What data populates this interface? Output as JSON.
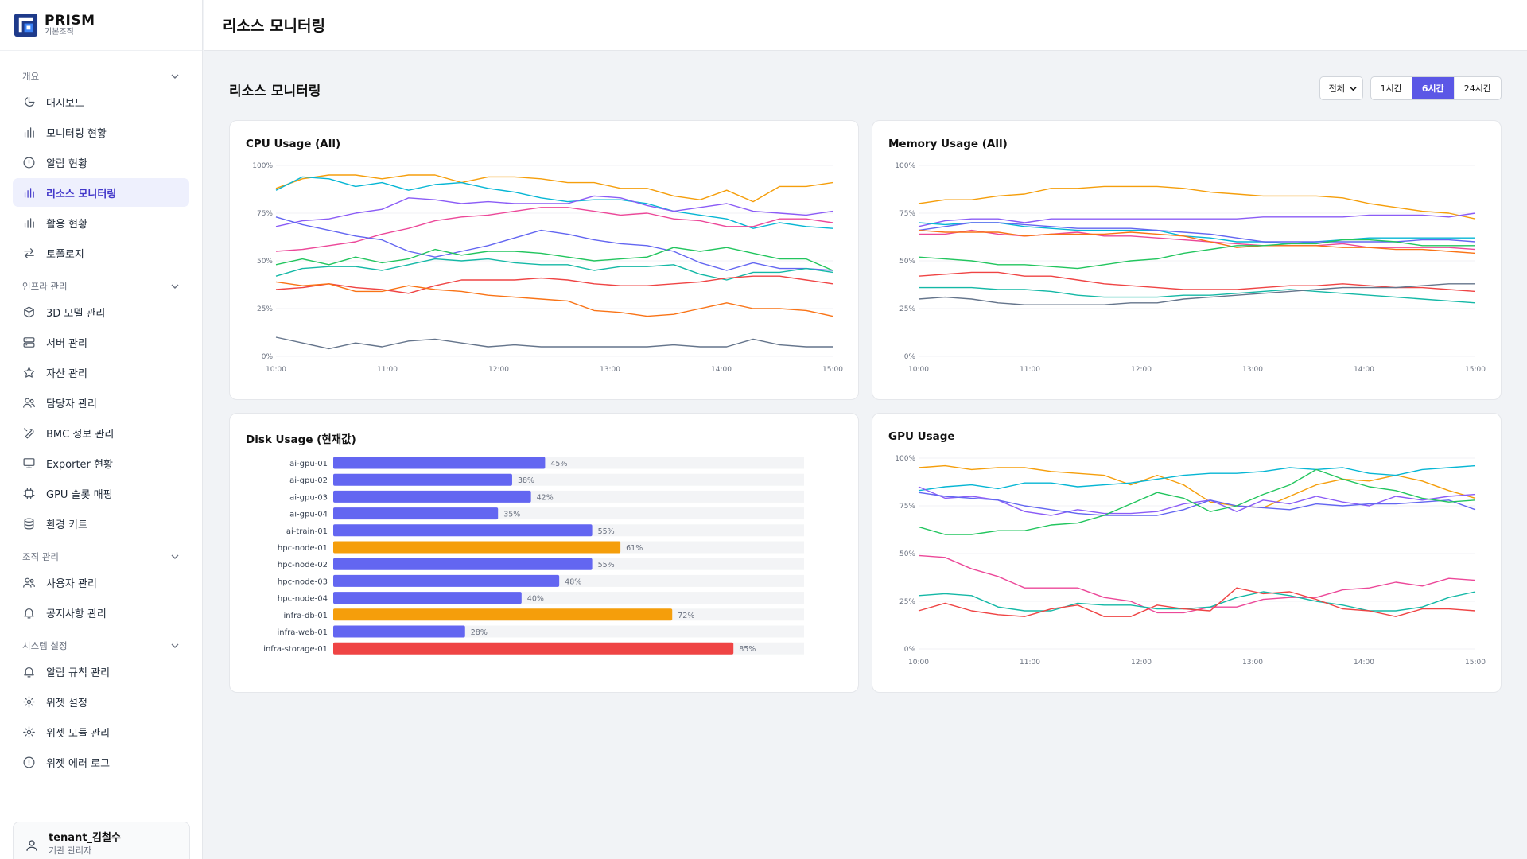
{
  "brand": {
    "name": "PRISM",
    "sub": "기본조직"
  },
  "sidebar": {
    "sections": [
      {
        "title": "개요",
        "items": [
          {
            "label": "대시보드",
            "icon": "pie-chart-icon"
          },
          {
            "label": "모니터링 현황",
            "icon": "bar-chart-icon"
          },
          {
            "label": "알람 현황",
            "icon": "alert-circle-icon"
          },
          {
            "label": "리소스 모니터링",
            "icon": "bar-chart-icon",
            "active": true
          },
          {
            "label": "활용 현황",
            "icon": "bar-chart-icon"
          },
          {
            "label": "토폴로지",
            "icon": "arrows-swap-icon"
          }
        ]
      },
      {
        "title": "인프라 관리",
        "items": [
          {
            "label": "3D 모델 관리",
            "icon": "cube-icon"
          },
          {
            "label": "서버 관리",
            "icon": "server-icon"
          },
          {
            "label": "자산 관리",
            "icon": "star-icon"
          },
          {
            "label": "담당자 관리",
            "icon": "users-icon"
          },
          {
            "label": "BMC 정보 관리",
            "icon": "wrench-icon"
          },
          {
            "label": "Exporter 현황",
            "icon": "monitor-icon"
          },
          {
            "label": "GPU 슬롯 매핑",
            "icon": "chip-icon"
          },
          {
            "label": "환경 키트",
            "icon": "database-icon"
          }
        ]
      },
      {
        "title": "조직 관리",
        "items": [
          {
            "label": "사용자 관리",
            "icon": "users-icon"
          },
          {
            "label": "공지사항 관리",
            "icon": "bell-icon"
          }
        ]
      },
      {
        "title": "시스템 설정",
        "items": [
          {
            "label": "알람 규칙 관리",
            "icon": "bell-icon"
          },
          {
            "label": "위젯 설정",
            "icon": "gear-icon"
          },
          {
            "label": "위젯 모듈 관리",
            "icon": "gear-icon"
          },
          {
            "label": "위젯 에러 로그",
            "icon": "alert-circle-icon"
          }
        ]
      }
    ]
  },
  "user": {
    "name": "tenant_김철수",
    "role": "기관 관리자"
  },
  "topbar": {
    "title": "리소스 모니터링"
  },
  "page": {
    "heading": "리소스 모니터링"
  },
  "filter": {
    "selected": "전체"
  },
  "ranges": {
    "options": [
      "1시간",
      "6시간",
      "24시간"
    ],
    "active": "6시간"
  },
  "chart_data": [
    {
      "id": "cpu",
      "type": "line",
      "title": "CPU Usage (All)",
      "ylim": [
        0,
        100
      ],
      "yticks": [
        "0%",
        "25%",
        "50%",
        "75%",
        "100%"
      ],
      "xticks": [
        "10:00",
        "11:00",
        "12:00",
        "13:00",
        "14:00",
        "15:00"
      ],
      "series": [
        {
          "color": "#f59e0b",
          "values": [
            88,
            93,
            95,
            95,
            93,
            95,
            95,
            91,
            94,
            94,
            93,
            91,
            91,
            88,
            88,
            84,
            82,
            87,
            81,
            89,
            89,
            91
          ]
        },
        {
          "color": "#06b6d4",
          "values": [
            87,
            94,
            93,
            89,
            91,
            87,
            90,
            91,
            88,
            86,
            83,
            81,
            82,
            82,
            80,
            76,
            74,
            72,
            67,
            70,
            68,
            67
          ]
        },
        {
          "color": "#8b5cf6",
          "values": [
            68,
            71,
            72,
            75,
            77,
            83,
            82,
            80,
            81,
            80,
            80,
            80,
            84,
            83,
            79,
            76,
            78,
            80,
            76,
            75,
            74,
            76
          ]
        },
        {
          "color": "#ec4899",
          "values": [
            55,
            56,
            58,
            60,
            64,
            67,
            71,
            73,
            74,
            76,
            78,
            78,
            76,
            74,
            75,
            72,
            71,
            68,
            68,
            72,
            72,
            70
          ]
        },
        {
          "color": "#6366f1",
          "values": [
            73,
            69,
            66,
            63,
            61,
            55,
            52,
            55,
            58,
            62,
            66,
            64,
            61,
            59,
            58,
            55,
            49,
            45,
            49,
            46,
            46,
            45
          ]
        },
        {
          "color": "#22c55e",
          "values": [
            48,
            51,
            48,
            52,
            49,
            51,
            56,
            53,
            55,
            55,
            54,
            52,
            50,
            51,
            52,
            57,
            55,
            57,
            54,
            51,
            51,
            45
          ]
        },
        {
          "color": "#14b8a6",
          "values": [
            42,
            46,
            47,
            47,
            45,
            48,
            51,
            50,
            51,
            49,
            48,
            48,
            45,
            47,
            47,
            48,
            43,
            40,
            44,
            44,
            46,
            44
          ]
        },
        {
          "color": "#ef4444",
          "values": [
            35,
            36,
            38,
            36,
            35,
            33,
            37,
            40,
            40,
            40,
            41,
            40,
            38,
            37,
            37,
            38,
            39,
            41,
            42,
            42,
            40,
            38
          ]
        },
        {
          "color": "#f97316",
          "values": [
            39,
            37,
            38,
            34,
            34,
            37,
            35,
            34,
            32,
            31,
            30,
            29,
            24,
            23,
            21,
            22,
            25,
            28,
            25,
            25,
            24,
            21
          ]
        },
        {
          "color": "#64748b",
          "values": [
            10,
            7,
            4,
            7,
            5,
            8,
            9,
            7,
            5,
            6,
            5,
            5,
            5,
            5,
            5,
            6,
            5,
            5,
            9,
            6,
            5,
            5
          ]
        }
      ]
    },
    {
      "id": "mem",
      "type": "line",
      "title": "Memory Usage (All)",
      "ylim": [
        0,
        100
      ],
      "yticks": [
        "0%",
        "25%",
        "50%",
        "75%",
        "100%"
      ],
      "xticks": [
        "10:00",
        "11:00",
        "12:00",
        "13:00",
        "14:00",
        "15:00"
      ],
      "series": [
        {
          "color": "#f59e0b",
          "values": [
            80,
            82,
            82,
            84,
            85,
            88,
            88,
            89,
            89,
            89,
            88,
            86,
            85,
            84,
            84,
            84,
            83,
            80,
            78,
            76,
            75,
            72
          ]
        },
        {
          "color": "#8b5cf6",
          "values": [
            68,
            71,
            72,
            72,
            70,
            72,
            72,
            72,
            72,
            72,
            72,
            72,
            72,
            73,
            73,
            73,
            73,
            74,
            74,
            74,
            73,
            75
          ]
        },
        {
          "color": "#06b6d4",
          "values": [
            70,
            69,
            70,
            70,
            68,
            67,
            66,
            66,
            66,
            66,
            63,
            62,
            60,
            60,
            59,
            60,
            61,
            62,
            62,
            62,
            62,
            62
          ]
        },
        {
          "color": "#6366f1",
          "values": [
            66,
            68,
            70,
            70,
            69,
            68,
            67,
            67,
            67,
            66,
            65,
            64,
            62,
            60,
            60,
            60,
            60,
            60,
            60,
            61,
            61,
            60
          ]
        },
        {
          "color": "#ec4899",
          "values": [
            64,
            64,
            66,
            64,
            63,
            64,
            65,
            63,
            63,
            62,
            61,
            60,
            59,
            58,
            58,
            58,
            59,
            57,
            57,
            57,
            57,
            56
          ]
        },
        {
          "color": "#f97316",
          "values": [
            66,
            65,
            65,
            65,
            63,
            64,
            64,
            64,
            65,
            64,
            63,
            60,
            57,
            58,
            58,
            58,
            57,
            57,
            56,
            56,
            55,
            54
          ]
        },
        {
          "color": "#22c55e",
          "values": [
            52,
            51,
            50,
            48,
            48,
            47,
            46,
            48,
            50,
            51,
            54,
            56,
            58,
            58,
            59,
            59,
            61,
            61,
            60,
            58,
            58,
            58
          ]
        },
        {
          "color": "#ef4444",
          "values": [
            42,
            43,
            44,
            44,
            42,
            42,
            40,
            38,
            37,
            36,
            35,
            35,
            35,
            36,
            37,
            37,
            38,
            37,
            36,
            36,
            35,
            34
          ]
        },
        {
          "color": "#14b8a6",
          "values": [
            36,
            36,
            36,
            35,
            35,
            34,
            32,
            31,
            31,
            31,
            32,
            32,
            33,
            34,
            35,
            34,
            33,
            32,
            31,
            30,
            29,
            28
          ]
        },
        {
          "color": "#64748b",
          "values": [
            30,
            31,
            30,
            28,
            27,
            27,
            27,
            27,
            28,
            28,
            30,
            31,
            32,
            33,
            34,
            35,
            36,
            36,
            36,
            37,
            38,
            38
          ]
        }
      ]
    },
    {
      "id": "disk",
      "type": "bar",
      "title": "Disk Usage (현재값)",
      "orientation": "horizontal",
      "xlim": [
        0,
        100
      ],
      "categories": [
        "ai-gpu-01",
        "ai-gpu-02",
        "ai-gpu-03",
        "ai-gpu-04",
        "ai-train-01",
        "hpc-node-01",
        "hpc-node-02",
        "hpc-node-03",
        "hpc-node-04",
        "infra-db-01",
        "infra-web-01",
        "infra-storage-01"
      ],
      "values": [
        45,
        38,
        42,
        35,
        55,
        61,
        55,
        48,
        40,
        72,
        28,
        85
      ],
      "value_labels": [
        "45%",
        "38%",
        "42%",
        "35%",
        "55%",
        "61%",
        "55%",
        "48%",
        "40%",
        "72%",
        "28%",
        "85%"
      ],
      "colors": [
        "#6366f1",
        "#6366f1",
        "#6366f1",
        "#6366f1",
        "#6366f1",
        "#f59e0b",
        "#6366f1",
        "#6366f1",
        "#6366f1",
        "#f59e0b",
        "#6366f1",
        "#ef4444"
      ]
    },
    {
      "id": "gpu",
      "type": "line",
      "title": "GPU Usage",
      "ylim": [
        0,
        100
      ],
      "yticks": [
        "0%",
        "25%",
        "50%",
        "75%",
        "100%"
      ],
      "xticks": [
        "10:00",
        "11:00",
        "12:00",
        "13:00",
        "14:00",
        "15:00"
      ],
      "series": [
        {
          "color": "#f59e0b",
          "values": [
            95,
            96,
            94,
            95,
            95,
            93,
            92,
            91,
            86,
            91,
            86,
            77,
            75,
            74,
            80,
            86,
            89,
            88,
            91,
            88,
            83,
            79
          ]
        },
        {
          "color": "#06b6d4",
          "values": [
            83,
            85,
            86,
            84,
            87,
            87,
            85,
            86,
            87,
            89,
            91,
            92,
            92,
            93,
            95,
            94,
            95,
            92,
            91,
            94,
            95,
            96
          ]
        },
        {
          "color": "#8b5cf6",
          "values": [
            85,
            79,
            80,
            78,
            72,
            70,
            73,
            71,
            71,
            72,
            76,
            78,
            72,
            78,
            76,
            80,
            77,
            75,
            80,
            78,
            80,
            81
          ]
        },
        {
          "color": "#6366f1",
          "values": [
            82,
            80,
            79,
            78,
            75,
            73,
            71,
            70,
            70,
            70,
            73,
            78,
            75,
            74,
            73,
            76,
            75,
            76,
            76,
            77,
            78,
            73
          ]
        },
        {
          "color": "#22c55e",
          "values": [
            64,
            60,
            60,
            62,
            62,
            65,
            66,
            70,
            76,
            82,
            79,
            72,
            75,
            81,
            86,
            94,
            89,
            85,
            83,
            79,
            77,
            78
          ]
        },
        {
          "color": "#ec4899",
          "values": [
            49,
            48,
            42,
            38,
            32,
            32,
            32,
            27,
            25,
            19,
            19,
            22,
            22,
            26,
            27,
            27,
            31,
            32,
            35,
            33,
            37,
            36
          ]
        },
        {
          "color": "#14b8a6",
          "values": [
            28,
            29,
            28,
            22,
            20,
            20,
            24,
            23,
            23,
            21,
            21,
            22,
            27,
            30,
            28,
            25,
            23,
            20,
            20,
            22,
            27,
            30
          ]
        },
        {
          "color": "#ef4444",
          "values": [
            20,
            24,
            20,
            18,
            17,
            21,
            23,
            17,
            17,
            23,
            21,
            20,
            32,
            29,
            30,
            26,
            21,
            20,
            17,
            21,
            21,
            20
          ]
        }
      ]
    }
  ]
}
